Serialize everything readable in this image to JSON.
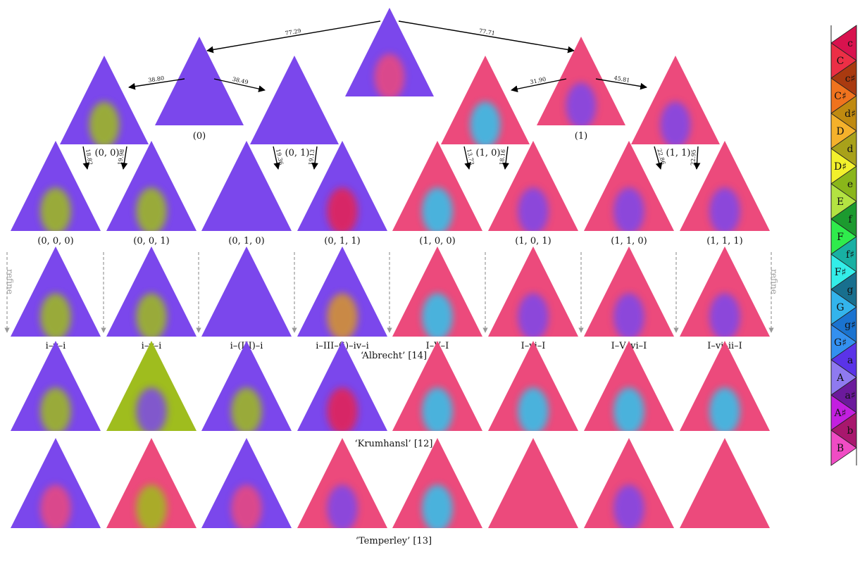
{
  "colors": {
    "purple": "#7b47ec",
    "pink": "#ec4a7c",
    "cyan": "#2fc5ee",
    "lime": "#9fbd1e",
    "orange": "#d7962a",
    "red": "#e8234f",
    "gray": "#9a9a9a"
  },
  "tree": {
    "root_edges": [
      {
        "label": "77.29"
      },
      {
        "label": "77.71"
      }
    ],
    "level1": [
      {
        "label": "(0)",
        "base": "purple",
        "edges": [
          "38.80",
          "38.49"
        ]
      },
      {
        "label": "(1)",
        "base": "pink",
        "edges": [
          "31.90",
          "45.81"
        ]
      }
    ],
    "level2": [
      {
        "label": "(0, 0)",
        "base": "purple",
        "blob": "lime",
        "edges": [
          "18.82",
          "19.98"
        ]
      },
      {
        "label": "(0, 1)",
        "base": "purple",
        "blob": "",
        "edges": [
          "19.36",
          "19.13"
        ]
      },
      {
        "label": "(1, 0)",
        "base": "pink",
        "blob": "cyan",
        "edges": [
          "13.73",
          "18.16"
        ]
      },
      {
        "label": "(1, 1)",
        "base": "pink",
        "blob": "purple",
        "edges": [
          "22.86",
          "22.95"
        ]
      }
    ],
    "leaves": [
      {
        "label": "(0, 0, 0)",
        "base": "purple",
        "blob": "lime"
      },
      {
        "label": "(0, 0, 1)",
        "base": "purple",
        "blob": "lime"
      },
      {
        "label": "(0, 1, 0)",
        "base": "purple",
        "blob": ""
      },
      {
        "label": "(0, 1, 1)",
        "base": "purple",
        "blob": "red"
      },
      {
        "label": "(1, 0, 0)",
        "base": "pink",
        "blob": "cyan"
      },
      {
        "label": "(1, 0, 1)",
        "base": "pink",
        "blob": "purple"
      },
      {
        "label": "(1, 1, 0)",
        "base": "pink",
        "blob": "purple"
      },
      {
        "label": "(1, 1, 1)",
        "base": "pink",
        "blob": "purple"
      }
    ],
    "refine_label": "refine"
  },
  "rows": [
    {
      "caption": "‘Albrecht’ [14]",
      "items": [
        {
          "label": "i–v–i",
          "base": "purple",
          "blob": "lime"
        },
        {
          "label": "i–v–i",
          "base": "purple",
          "blob": "lime"
        },
        {
          "label": "i–(III)–i",
          "base": "purple",
          "blob": ""
        },
        {
          "label": "i–III–(i)–iv–i",
          "base": "purple",
          "blob": "orange"
        },
        {
          "label": "I–V–I",
          "base": "pink",
          "blob": "cyan"
        },
        {
          "label": "I–vi–I",
          "base": "pink",
          "blob": "purple"
        },
        {
          "label": "I–V–vi–I",
          "base": "pink",
          "blob": "purple"
        },
        {
          "label": "I–vi–ii–I",
          "base": "pink",
          "blob": "purple"
        }
      ]
    },
    {
      "caption": "‘Krumhansl’ [12]",
      "items": [
        {
          "base": "purple",
          "blob": "lime"
        },
        {
          "base": "lime",
          "blob": "purple"
        },
        {
          "base": "purple",
          "blob": "lime"
        },
        {
          "base": "purple",
          "blob": "red"
        },
        {
          "base": "pink",
          "blob": "cyan"
        },
        {
          "base": "pink",
          "blob": "cyan"
        },
        {
          "base": "pink",
          "blob": "cyan"
        },
        {
          "base": "pink",
          "blob": "cyan"
        }
      ]
    },
    {
      "caption": "‘Temperley’ [13]",
      "items": [
        {
          "base": "purple",
          "blob": "pink"
        },
        {
          "base": "pink",
          "blob": "lime"
        },
        {
          "base": "purple",
          "blob": "pink"
        },
        {
          "base": "pink",
          "blob": "purple"
        },
        {
          "base": "pink",
          "blob": "cyan"
        },
        {
          "base": "pink",
          "blob": ""
        },
        {
          "base": "pink",
          "blob": "purple"
        },
        {
          "base": "pink",
          "blob": ""
        }
      ]
    }
  ],
  "legend": [
    {
      "label": "c",
      "color": "#d8124e"
    },
    {
      "label": "C",
      "color": "#ec2f46"
    },
    {
      "label": "c♯",
      "color": "#a93a10"
    },
    {
      "label": "C♯",
      "color": "#f0731e"
    },
    {
      "label": "d♯",
      "color": "#c08a10"
    },
    {
      "label": "D",
      "color": "#f5b12b"
    },
    {
      "label": "d",
      "color": "#a8a11a"
    },
    {
      "label": "D♯",
      "color": "#f2f02c"
    },
    {
      "label": "e",
      "color": "#8ab61a"
    },
    {
      "label": "E",
      "color": "#b3e342"
    },
    {
      "label": "f",
      "color": "#1c9a2f"
    },
    {
      "label": "F",
      "color": "#2fec4c"
    },
    {
      "label": "f♯",
      "color": "#18b0a3"
    },
    {
      "label": "F♯",
      "color": "#33eee9"
    },
    {
      "label": "g",
      "color": "#186f8e"
    },
    {
      "label": "G",
      "color": "#33b4ec"
    },
    {
      "label": "g♯",
      "color": "#1a73d0"
    },
    {
      "label": "G♯",
      "color": "#3390f0"
    },
    {
      "label": "a",
      "color": "#5a33e8"
    },
    {
      "label": "A",
      "color": "#8f7af0"
    },
    {
      "label": "a♯",
      "color": "#6b1a9c"
    },
    {
      "label": "A♯",
      "color": "#c31fe0"
    },
    {
      "label": "b",
      "color": "#a8176d"
    },
    {
      "label": "B",
      "color": "#f04cc4"
    }
  ]
}
